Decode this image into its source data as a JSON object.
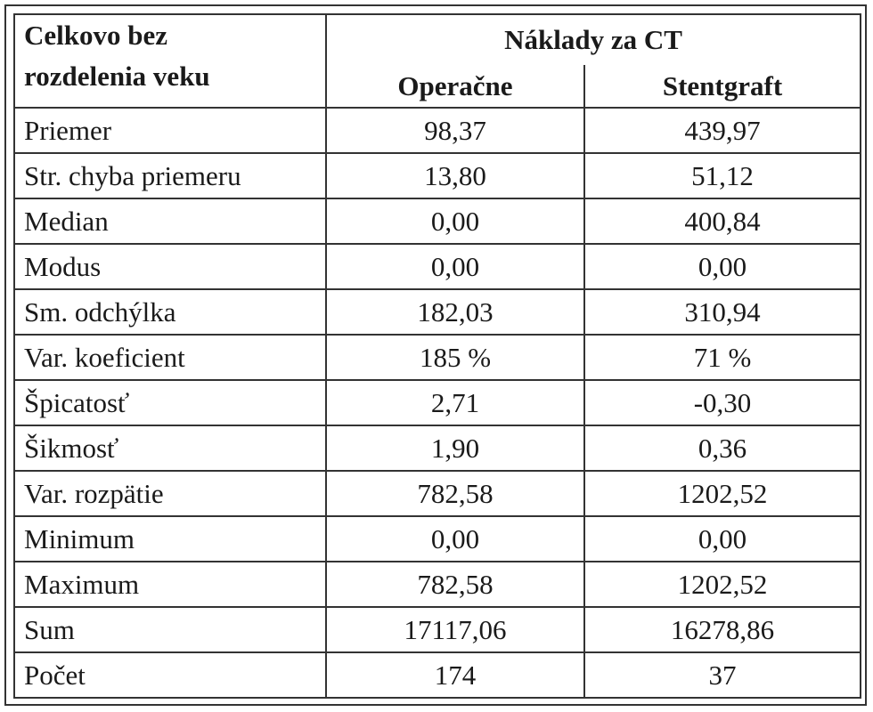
{
  "header": {
    "row_header": [
      "Celkovo bez",
      "rozdelenia veku"
    ],
    "group": "Náklady za CT",
    "columns": [
      "Operačne",
      "Stentgraft"
    ]
  },
  "table": {
    "rows": [
      [
        "Priemer",
        "98,37",
        "439,97"
      ],
      [
        "Str. chyba priemeru",
        "13,80",
        "51,12"
      ],
      [
        "Median",
        "0,00",
        "400,84"
      ],
      [
        "Modus",
        "0,00",
        "0,00"
      ],
      [
        "Sm. odchýlka",
        "182,03",
        "310,94"
      ],
      [
        "Var. koeficient",
        "185 %",
        "71 %"
      ],
      [
        "Špicatosť",
        "2,71",
        "-0,30"
      ],
      [
        "Šikmosť",
        "1,90",
        "0,36"
      ],
      [
        "Var. rozpätie",
        "782,58",
        "1202,52"
      ],
      [
        "Minimum",
        "0,00",
        "0,00"
      ],
      [
        "Maximum",
        "782,58",
        "1202,52"
      ],
      [
        "Sum",
        "17117,06",
        "16278,86"
      ],
      [
        "Počet",
        "174",
        "37"
      ]
    ]
  }
}
